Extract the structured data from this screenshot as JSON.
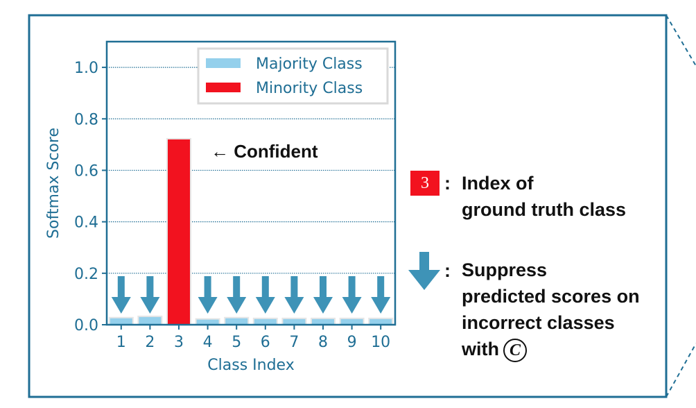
{
  "chart_data": {
    "type": "bar",
    "categories": [
      "1",
      "2",
      "3",
      "4",
      "5",
      "6",
      "7",
      "8",
      "9",
      "10"
    ],
    "series": [
      {
        "name": "Majority Class",
        "color": "#94d0ec",
        "values": [
          0.025,
          0.03,
          0,
          0.02,
          0.025,
          0.022,
          0.022,
          0.022,
          0.022,
          0.022
        ]
      },
      {
        "name": "Minority Class",
        "color": "#f2121f",
        "values": [
          0,
          0,
          0.72,
          0,
          0,
          0,
          0,
          0,
          0,
          0
        ]
      }
    ],
    "xlabel": "Class Index",
    "ylabel": "Softmax Score",
    "ylim": [
      0,
      1.1
    ],
    "yticks": [
      "0.0",
      "0.2",
      "0.4",
      "0.6",
      "0.8",
      "1.0"
    ],
    "ytick_values": [
      0,
      0.2,
      0.4,
      0.6,
      0.8,
      1.0
    ],
    "grid": true,
    "legend_position": "top-right",
    "suppressed_categories": [
      "1",
      "2",
      "4",
      "5",
      "6",
      "7",
      "8",
      "9",
      "10"
    ],
    "annotation": "← Confident",
    "axis_color": "#1f6e94",
    "arrow_color": "#3e93b7"
  },
  "legend_items": {
    "ground_truth_box": "3",
    "ground_truth_text_line1": "Index of",
    "ground_truth_text_line2": "ground truth class",
    "suppress_text_line1": "Suppress",
    "suppress_text_line2": "predicted scores on",
    "suppress_text_line3": "incorrect classes",
    "suppress_text_line4": "with",
    "c_symbol": "C",
    "colon": ":"
  }
}
